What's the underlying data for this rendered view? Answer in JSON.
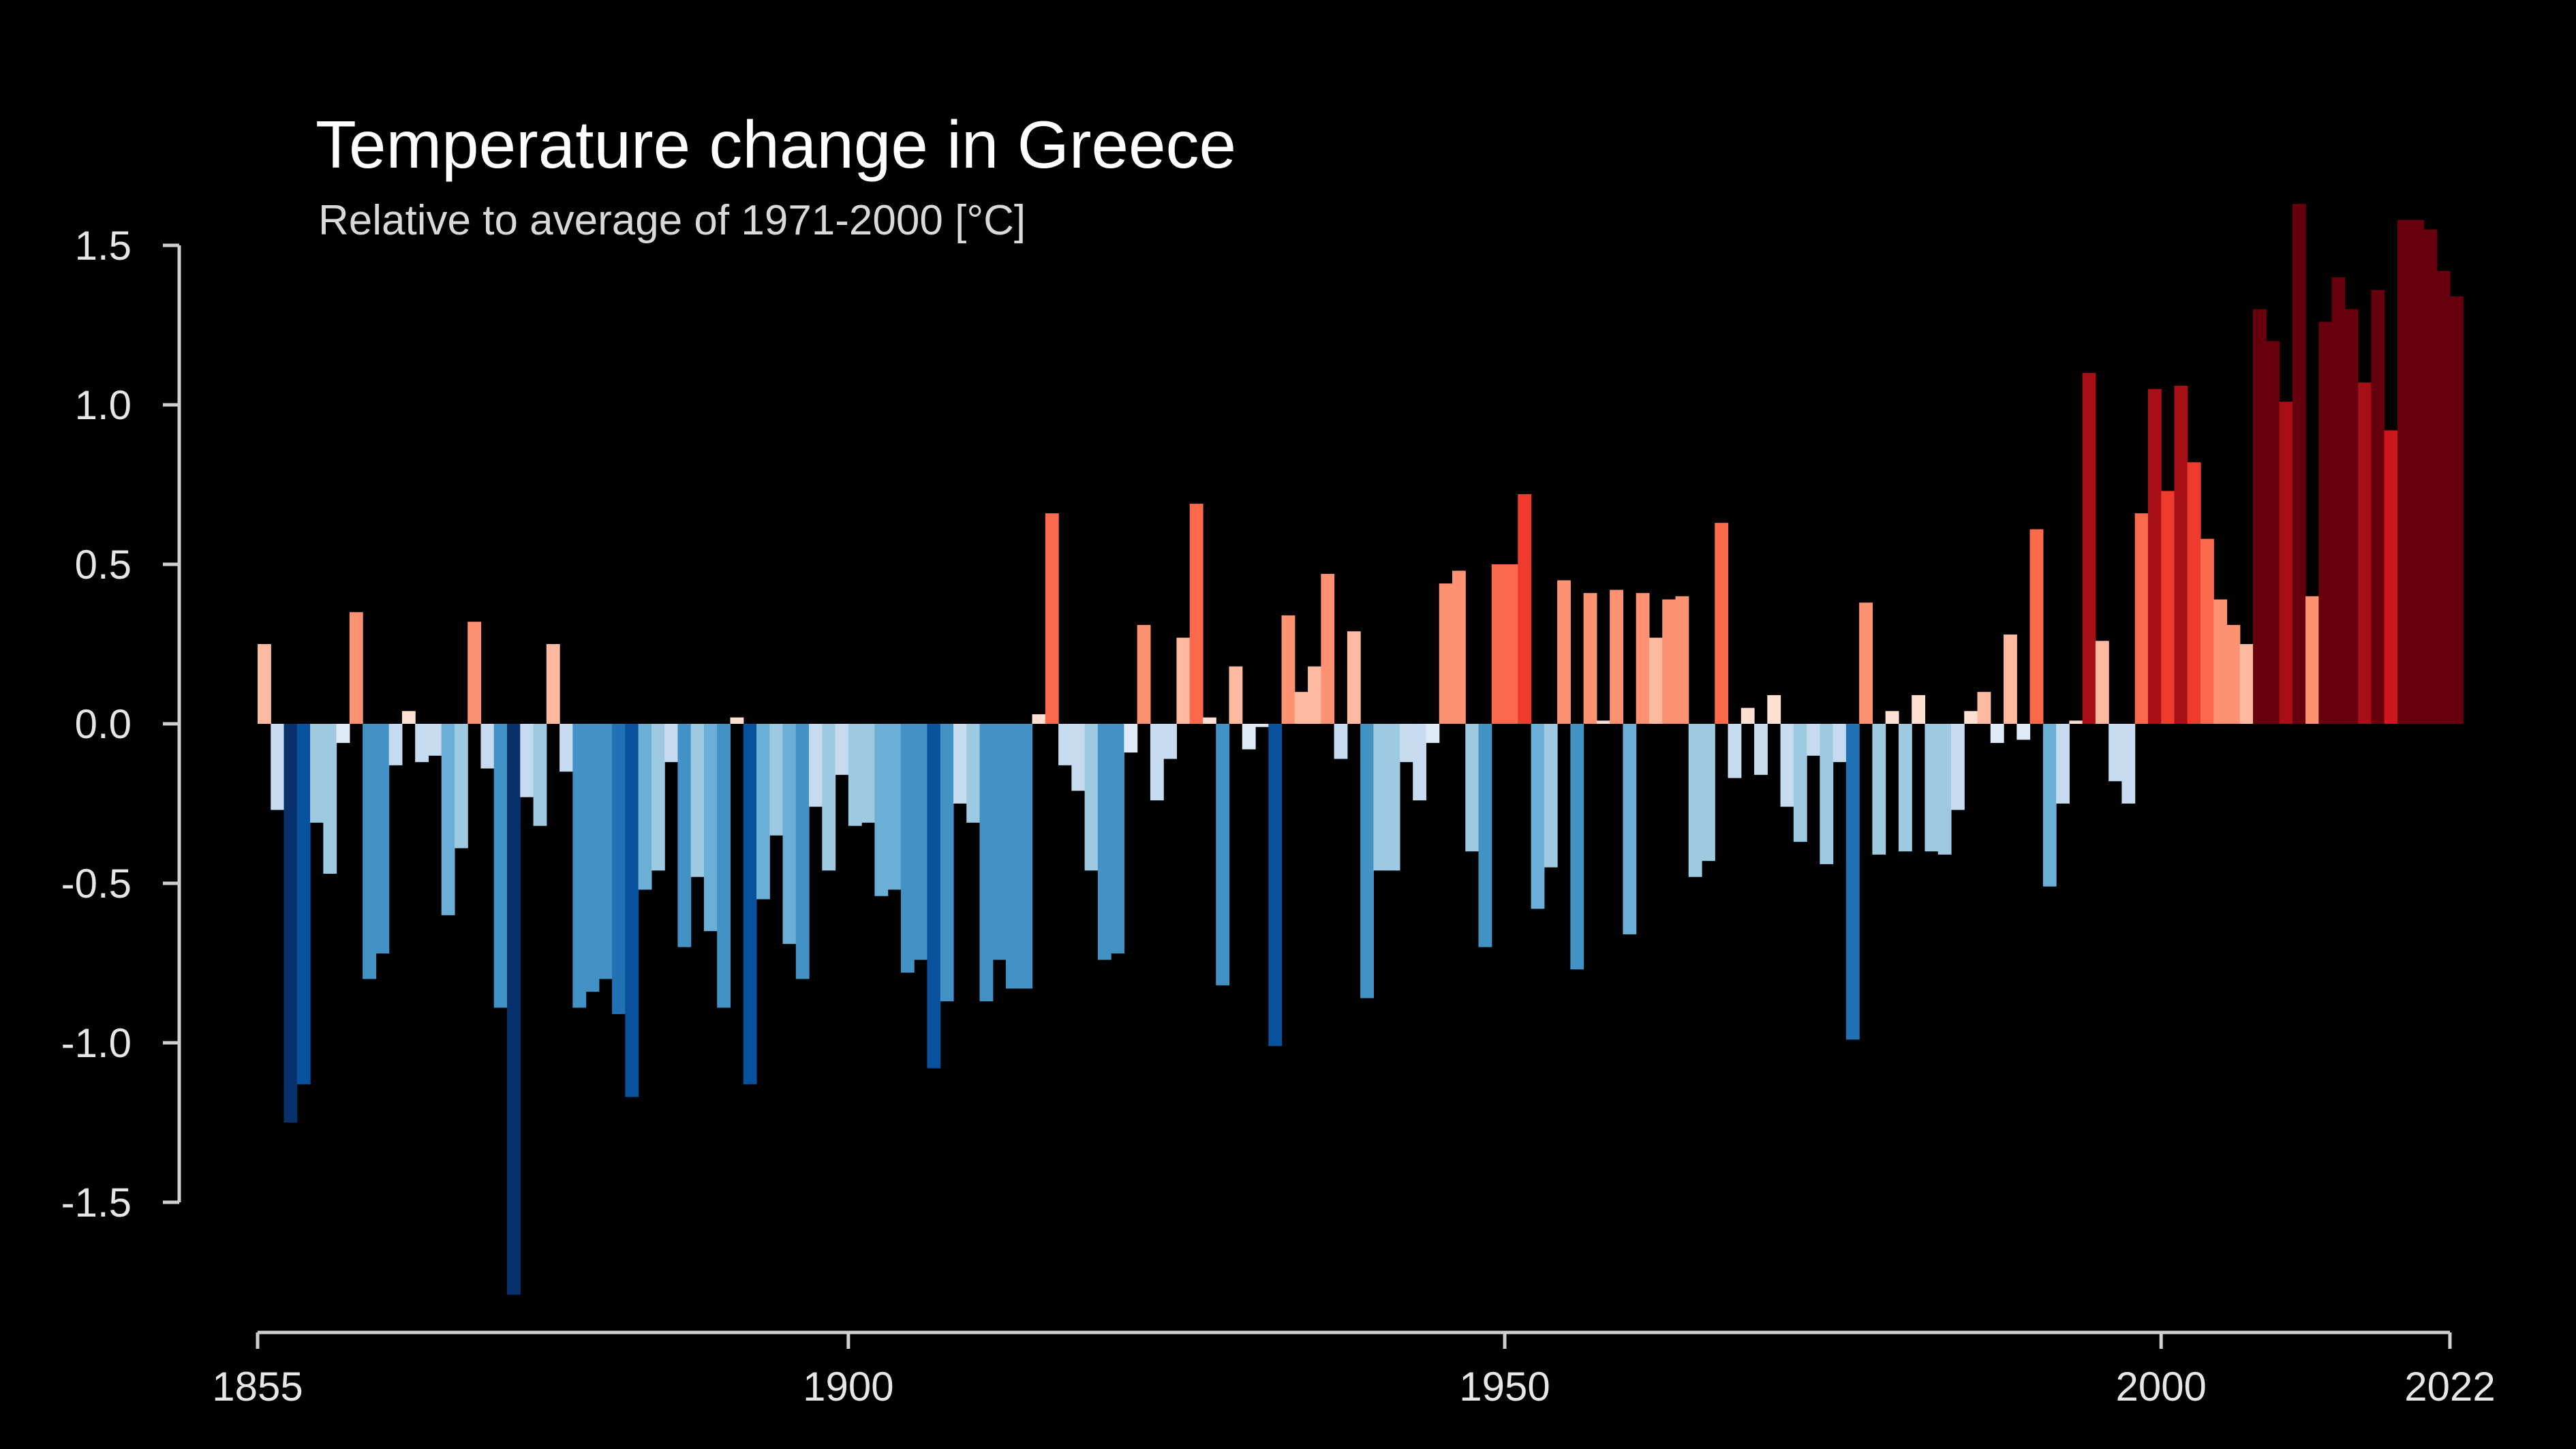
{
  "chart_data": {
    "type": "bar",
    "title": "Temperature change in Greece",
    "subtitle": "Relative to average of 1971-2000  [°C]",
    "xlabel": "",
    "ylabel": "",
    "x_start": 1855,
    "x_end": 2022,
    "ylim": [
      -1.8,
      1.65
    ],
    "grid": false,
    "legend": "none",
    "yticks": [
      1.5,
      1.0,
      0.5,
      0.0,
      -0.5,
      -1.0,
      -1.5
    ],
    "ytick_labels": [
      "1.5",
      "1.0",
      "0.5",
      "0.0",
      "-0.5",
      "-1.0",
      "-1.5"
    ],
    "xticks": [
      1855,
      1900,
      1950,
      2000,
      2022
    ],
    "xtick_labels": [
      "1855",
      "1900",
      "1950",
      "2000",
      "2022"
    ],
    "x": [
      1855,
      1856,
      1857,
      1858,
      1859,
      1860,
      1861,
      1862,
      1863,
      1864,
      1865,
      1866,
      1867,
      1868,
      1869,
      1870,
      1871,
      1872,
      1873,
      1874,
      1875,
      1876,
      1877,
      1878,
      1879,
      1880,
      1881,
      1882,
      1883,
      1884,
      1885,
      1886,
      1887,
      1888,
      1889,
      1890,
      1891,
      1892,
      1893,
      1894,
      1895,
      1896,
      1897,
      1898,
      1899,
      1900,
      1901,
      1902,
      1903,
      1904,
      1905,
      1906,
      1907,
      1908,
      1909,
      1910,
      1911,
      1912,
      1913,
      1914,
      1915,
      1916,
      1917,
      1918,
      1919,
      1920,
      1921,
      1922,
      1923,
      1924,
      1925,
      1926,
      1927,
      1928,
      1929,
      1930,
      1931,
      1932,
      1933,
      1934,
      1935,
      1936,
      1937,
      1938,
      1939,
      1940,
      1941,
      1942,
      1943,
      1944,
      1945,
      1946,
      1947,
      1948,
      1949,
      1950,
      1951,
      1952,
      1953,
      1954,
      1955,
      1956,
      1957,
      1958,
      1959,
      1960,
      1961,
      1962,
      1963,
      1964,
      1965,
      1966,
      1967,
      1968,
      1969,
      1970,
      1971,
      1972,
      1973,
      1974,
      1975,
      1976,
      1977,
      1978,
      1979,
      1980,
      1981,
      1982,
      1983,
      1984,
      1985,
      1986,
      1987,
      1988,
      1989,
      1990,
      1991,
      1992,
      1993,
      1994,
      1995,
      1996,
      1997,
      1998,
      1999,
      2000,
      2001,
      2002,
      2003,
      2004,
      2005,
      2006,
      2007,
      2008,
      2009,
      2010,
      2011,
      2012,
      2013,
      2014,
      2015,
      2016,
      2017,
      2018,
      2019,
      2020,
      2021,
      2022
    ],
    "values": [
      0.25,
      -0.27,
      -1.25,
      -1.13,
      -0.31,
      -0.47,
      -0.06,
      0.35,
      -0.8,
      -0.72,
      -0.13,
      0.04,
      -0.12,
      -0.1,
      -0.6,
      -0.39,
      0.32,
      -0.14,
      -0.89,
      -1.79,
      -0.23,
      -0.32,
      0.25,
      -0.15,
      -0.89,
      -0.84,
      -0.8,
      -0.91,
      -1.17,
      -0.52,
      -0.46,
      -0.12,
      -0.7,
      -0.48,
      -0.65,
      -0.89,
      0.02,
      -1.13,
      -0.55,
      -0.35,
      -0.69,
      -0.8,
      -0.26,
      -0.46,
      -0.16,
      -0.32,
      -0.31,
      -0.54,
      -0.52,
      -0.78,
      -0.74,
      -1.08,
      -0.87,
      -0.25,
      -0.31,
      -0.87,
      -0.74,
      -0.83,
      -0.83,
      0.03,
      0.66,
      -0.13,
      -0.21,
      -0.46,
      -0.74,
      -0.72,
      -0.09,
      0.31,
      -0.24,
      -0.11,
      0.27,
      0.69,
      0.02,
      -0.82,
      0.18,
      -0.08,
      -0.01,
      -1.01,
      0.34,
      0.1,
      0.18,
      0.47,
      -0.11,
      0.29,
      -0.86,
      -0.46,
      -0.46,
      -0.12,
      -0.24,
      -0.06,
      0.44,
      0.48,
      -0.4,
      -0.7,
      0.5,
      0.5,
      0.72,
      -0.58,
      -0.45,
      0.45,
      -0.77,
      0.41,
      0.01,
      0.42,
      -0.66,
      0.41,
      0.27,
      0.39,
      0.4,
      -0.48,
      -0.43,
      0.63,
      -0.17,
      0.05,
      -0.16,
      0.09,
      -0.26,
      -0.37,
      -0.1,
      -0.44,
      -0.12,
      -0.99,
      0.38,
      -0.41,
      0.04,
      -0.4,
      0.09,
      -0.4,
      -0.41,
      -0.27,
      0.04,
      0.1,
      -0.06,
      0.28,
      -0.05,
      0.61,
      -0.51,
      -0.25,
      0.01,
      1.1,
      0.26,
      -0.18,
      -0.25,
      0.66,
      1.05,
      0.73,
      1.06,
      0.82,
      0.58,
      0.39,
      0.31,
      0.25,
      1.3,
      1.2,
      1.01,
      1.63,
      0.4,
      1.26,
      1.4,
      1.3,
      1.07,
      1.36,
      0.92,
      1.58,
      1.58,
      1.55,
      1.42,
      1.34
    ],
    "color_scale": {
      "negative": [
        "#deebf7",
        "#c6dbef",
        "#9ecae1",
        "#6baed6",
        "#4292c6",
        "#2171b5",
        "#08519c",
        "#08306b"
      ],
      "positive": [
        "#fee0d2",
        "#fcbba1",
        "#fc9272",
        "#fb6a4a",
        "#ef3b2c",
        "#cb181d",
        "#a50f15",
        "#67000d"
      ]
    },
    "background": "#000000"
  }
}
